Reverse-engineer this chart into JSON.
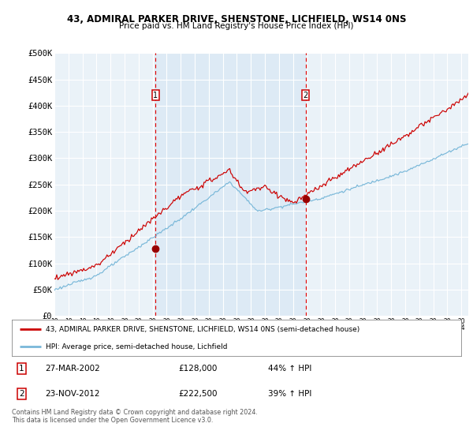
{
  "title1": "43, ADMIRAL PARKER DRIVE, SHENSTONE, LICHFIELD, WS14 0NS",
  "title2": "Price paid vs. HM Land Registry's House Price Index (HPI)",
  "ylabel_ticks": [
    "£0",
    "£50K",
    "£100K",
    "£150K",
    "£200K",
    "£250K",
    "£300K",
    "£350K",
    "£400K",
    "£450K",
    "£500K"
  ],
  "ytick_vals": [
    0,
    50000,
    100000,
    150000,
    200000,
    250000,
    300000,
    350000,
    400000,
    450000,
    500000
  ],
  "sale1_date_num": 2002.22,
  "sale1_price": 128000,
  "sale1_label": "1",
  "sale2_date_num": 2012.9,
  "sale2_price": 222500,
  "sale2_label": "2",
  "hpi_color": "#7ab8d9",
  "price_color": "#cc0000",
  "marker_color": "#990000",
  "bg_color": "#ddeaf5",
  "chart_bg": "#eaf2f8",
  "grid_color": "#ffffff",
  "outer_bg": "#ffffff",
  "legend_line1": "43, ADMIRAL PARKER DRIVE, SHENSTONE, LICHFIELD, WS14 0NS (semi-detached house)",
  "legend_line2": "HPI: Average price, semi-detached house, Lichfield",
  "table_row1": [
    "1",
    "27-MAR-2002",
    "£128,000",
    "44% ↑ HPI"
  ],
  "table_row2": [
    "2",
    "23-NOV-2012",
    "£222,500",
    "39% ↑ HPI"
  ],
  "footnote": "Contains HM Land Registry data © Crown copyright and database right 2024.\nThis data is licensed under the Open Government Licence v3.0.",
  "xmin": 1995.0,
  "xmax": 2024.5,
  "ymin": 0,
  "ymax": 500000
}
